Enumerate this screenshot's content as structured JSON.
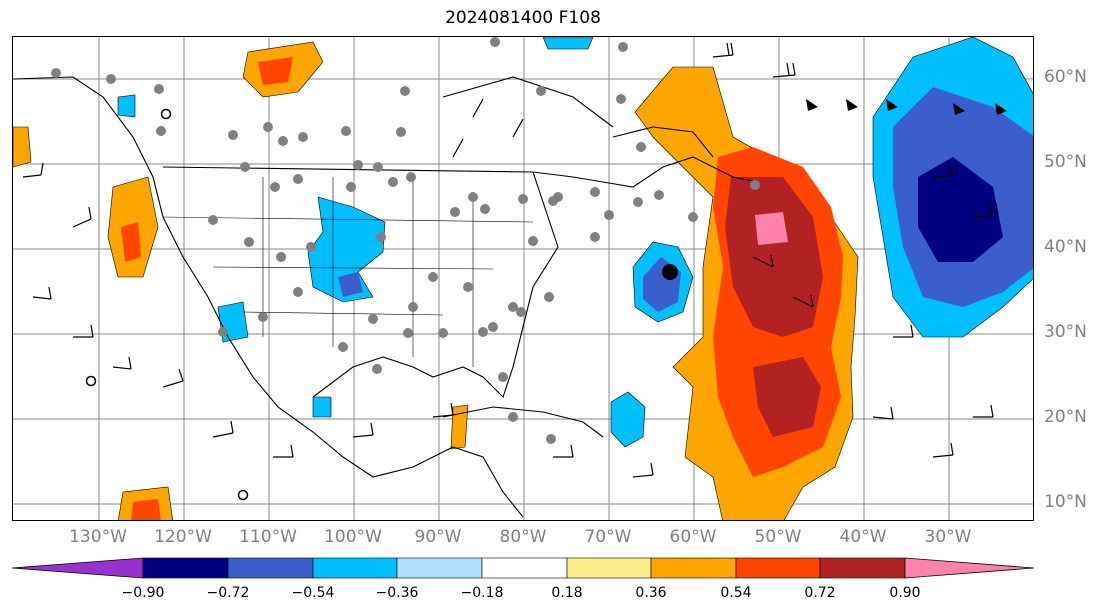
{
  "title": "2024081400 F108",
  "map": {
    "lat_labels": [
      "60°N",
      "50°N",
      "40°N",
      "30°N",
      "20°N",
      "10°N"
    ],
    "lon_labels": [
      "130°W",
      "120°W",
      "110°W",
      "100°W",
      "90°W",
      "80°W",
      "70°W",
      "60°W",
      "50°W",
      "40°W",
      "30°W"
    ],
    "storm_marker": "black-dot"
  },
  "colorbar": {
    "ticks": [
      "−0.90",
      "−0.72",
      "−0.54",
      "−0.36",
      "−0.18",
      "0.18",
      "0.36",
      "0.54",
      "0.72",
      "0.90"
    ],
    "colors": [
      "#9932CC",
      "#000080",
      "#3A5FCD",
      "#00BFFF",
      "#B0E2FF",
      "#FFFFFF",
      "#FFEC8B",
      "#FFA500",
      "#FF4500",
      "#B22222",
      "#FF82AB"
    ]
  }
}
